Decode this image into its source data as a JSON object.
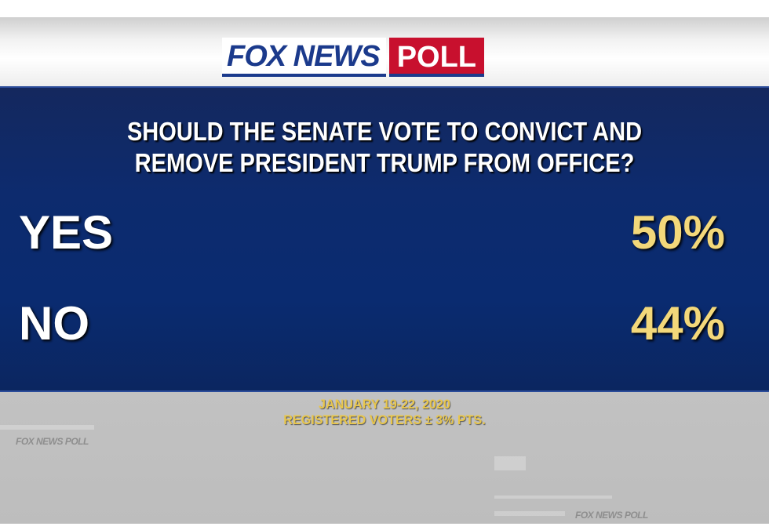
{
  "logo": {
    "brand": "FOX NEWS",
    "poll": "POLL"
  },
  "question": {
    "line1": "SHOULD THE SENATE VOTE TO CONVICT AND",
    "line2": "REMOVE PRESIDENT TRUMP FROM OFFICE?"
  },
  "results": [
    {
      "label": "YES",
      "value": "50%"
    },
    {
      "label": "NO",
      "value": "44%"
    }
  ],
  "footer": {
    "date": "JANUARY 19-22, 2020",
    "note": "REGISTERED VOTERS ± 3% PTS."
  },
  "watermark": "FOX NEWS POLL",
  "colors": {
    "panel": "#0a2b70",
    "value": "#f3d87a",
    "footer": "#e8c64c",
    "poll_red": "#c8102e"
  }
}
